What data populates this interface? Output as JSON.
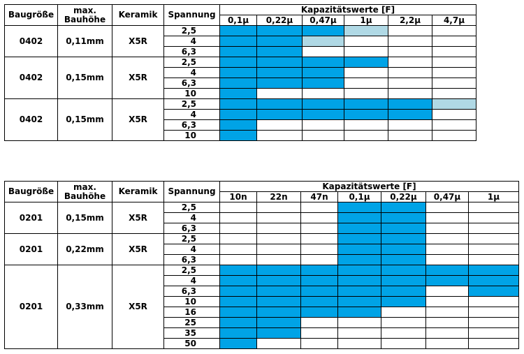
{
  "tables": [
    {
      "headers": {
        "size": "Baugröße",
        "height": "max. Bauhöhe",
        "ceramic": "Keramik",
        "voltage": "Spannung",
        "capacitance": "Kapazitätswerte [F]"
      },
      "values": [
        "0,1µ",
        "0,22µ",
        "0,47µ",
        "1µ",
        "2,2µ",
        "4,7µ"
      ],
      "legend_colors": {
        "available": "#00A3E6",
        "planned": "#B0D9E5"
      },
      "groups": [
        {
          "size": "0402",
          "height": "0,11mm",
          "ceramic": "X5R",
          "rows": [
            {
              "voltage": "2,5",
              "cells": [
                "available",
                "available",
                "available",
                "planned",
                "none",
                "none"
              ]
            },
            {
              "voltage": "4",
              "cells": [
                "available",
                "available",
                "planned",
                "none",
                "none",
                "none"
              ]
            },
            {
              "voltage": "6,3",
              "cells": [
                "available",
                "available",
                "none",
                "none",
                "none",
                "none"
              ]
            }
          ]
        },
        {
          "size": "0402",
          "height": "0,15mm",
          "ceramic": "X5R",
          "rows": [
            {
              "voltage": "2,5",
              "cells": [
                "available",
                "available",
                "available",
                "available",
                "none",
                "none"
              ]
            },
            {
              "voltage": "4",
              "cells": [
                "available",
                "available",
                "available",
                "none",
                "none",
                "none"
              ]
            },
            {
              "voltage": "6,3",
              "cells": [
                "available",
                "available",
                "available",
                "none",
                "none",
                "none"
              ]
            },
            {
              "voltage": "10",
              "cells": [
                "available",
                "none",
                "none",
                "none",
                "none",
                "none"
              ]
            }
          ]
        },
        {
          "size": "0402",
          "height": "0,15mm",
          "ceramic": "X5R",
          "rows": [
            {
              "voltage": "2,5",
              "cells": [
                "available",
                "available",
                "available",
                "available",
                "available",
                "planned"
              ]
            },
            {
              "voltage": "4",
              "cells": [
                "available",
                "available",
                "available",
                "available",
                "available",
                "none"
              ]
            },
            {
              "voltage": "6,3",
              "cells": [
                "available",
                "none",
                "none",
                "none",
                "none",
                "none"
              ]
            },
            {
              "voltage": "10",
              "cells": [
                "available",
                "none",
                "none",
                "none",
                "none",
                "none"
              ]
            }
          ]
        }
      ]
    },
    {
      "headers": {
        "size": "Baugröße",
        "height": "max. Bauhöhe",
        "ceramic": "Keramik",
        "voltage": "Spannung",
        "capacitance": "Kapazitätswerte [F]"
      },
      "values": [
        "10n",
        "22n",
        "47n",
        "0,1µ",
        "0,22µ",
        "0,47µ",
        "1µ"
      ],
      "legend_colors": {
        "available": "#00A3E6",
        "planned": "#B0D9E5"
      },
      "groups": [
        {
          "size": "0201",
          "height": "0,15mm",
          "ceramic": "X5R",
          "rows": [
            {
              "voltage": "2,5",
              "cells": [
                "none",
                "none",
                "none",
                "available",
                "available",
                "none",
                "none"
              ]
            },
            {
              "voltage": "4",
              "cells": [
                "none",
                "none",
                "none",
                "available",
                "available",
                "none",
                "none"
              ]
            },
            {
              "voltage": "6,3",
              "cells": [
                "none",
                "none",
                "none",
                "available",
                "available",
                "none",
                "none"
              ]
            }
          ]
        },
        {
          "size": "0201",
          "height": "0,22mm",
          "ceramic": "X5R",
          "rows": [
            {
              "voltage": "2,5",
              "cells": [
                "none",
                "none",
                "none",
                "available",
                "available",
                "none",
                "none"
              ]
            },
            {
              "voltage": "4",
              "cells": [
                "none",
                "none",
                "none",
                "available",
                "available",
                "none",
                "none"
              ]
            },
            {
              "voltage": "6,3",
              "cells": [
                "none",
                "none",
                "none",
                "available",
                "available",
                "none",
                "none"
              ]
            }
          ]
        },
        {
          "size": "0201",
          "height": "0,33mm",
          "ceramic": "X5R",
          "rows": [
            {
              "voltage": "2,5",
              "cells": [
                "available",
                "available",
                "available",
                "available",
                "available",
                "available",
                "available"
              ]
            },
            {
              "voltage": "4",
              "cells": [
                "available",
                "available",
                "available",
                "available",
                "available",
                "available",
                "available"
              ]
            },
            {
              "voltage": "6,3",
              "cells": [
                "available",
                "available",
                "available",
                "available",
                "available",
                "none",
                "available"
              ]
            },
            {
              "voltage": "10",
              "cells": [
                "available",
                "available",
                "available",
                "available",
                "available",
                "none",
                "none"
              ]
            },
            {
              "voltage": "16",
              "cells": [
                "available",
                "available",
                "available",
                "available",
                "none",
                "none",
                "none"
              ]
            },
            {
              "voltage": "25",
              "cells": [
                "available",
                "available",
                "none",
                "none",
                "none",
                "none",
                "none"
              ]
            },
            {
              "voltage": "35",
              "cells": [
                "available",
                "available",
                "none",
                "none",
                "none",
                "none",
                "none"
              ]
            },
            {
              "voltage": "50",
              "cells": [
                "available",
                "none",
                "none",
                "none",
                "none",
                "none",
                "none"
              ]
            }
          ]
        }
      ]
    }
  ]
}
